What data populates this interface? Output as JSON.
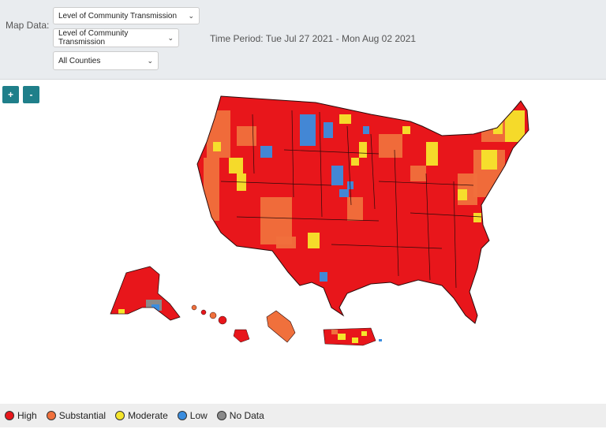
{
  "controls": {
    "map_data_label": "Map Data:",
    "select_metric": "Level of Community Transmission",
    "select_metric_2": "Level of Community Transmission",
    "select_counties": "All Counties",
    "time_period": "Time Period: Tue Jul 27 2021 - Mon Aug 02 2021"
  },
  "zoom": {
    "in_label": "+",
    "out_label": "-"
  },
  "colors": {
    "high": "#e8161b",
    "substantial": "#f0703c",
    "moderate": "#f5e52b",
    "low": "#3a8ddf",
    "no_data": "#8a8a8a",
    "border": "#2b0a0a"
  },
  "legend": [
    {
      "label": "High",
      "color_key": "high"
    },
    {
      "label": "Substantial",
      "color_key": "substantial"
    },
    {
      "label": "Moderate",
      "color_key": "moderate"
    },
    {
      "label": "Low",
      "color_key": "low"
    },
    {
      "label": "No Data",
      "color_key": "no_data"
    }
  ]
}
